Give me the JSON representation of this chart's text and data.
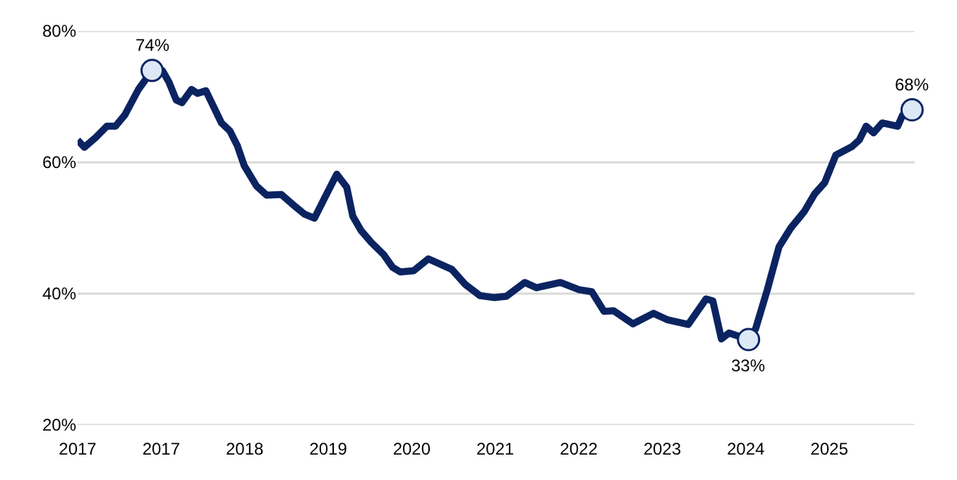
{
  "chart_data": {
    "type": "line",
    "x": [
      "2017-01-01",
      "2017-01-30",
      "2017-03-20",
      "2017-05-07",
      "2017-06-13",
      "2017-07-23",
      "2017-09-20",
      "2017-11-18",
      "2018-01-01",
      "2018-01-30",
      "2018-03-02",
      "2018-03-27",
      "2018-05-07",
      "2018-06-02",
      "2018-07-08",
      "2018-09-13",
      "2018-10-19",
      "2018-11-21",
      "2018-12-20",
      "2019-02-11",
      "2019-03-27",
      "2019-05-29",
      "2019-07-30",
      "2019-09-06",
      "2019-10-19",
      "2019-12-02",
      "2020-01-23",
      "2020-03-06",
      "2020-04-01",
      "2020-05-07",
      "2020-06-20",
      "2020-08-11",
      "2020-09-20",
      "2020-10-23",
      "2020-12-20",
      "2021-02-21",
      "2021-06-02",
      "2021-07-30",
      "2021-10-01",
      "2021-12-02",
      "2022-01-23",
      "2022-04-12",
      "2022-06-02",
      "2022-09-13",
      "2022-12-02",
      "2023-01-26",
      "2023-03-20",
      "2023-04-30",
      "2023-07-23",
      "2023-10-19",
      "2023-12-20",
      "2024-03-17",
      "2024-06-02",
      "2024-07-01",
      "2024-08-07",
      "2024-09-09",
      "2024-12-02",
      "2025-01-01",
      "2025-02-21",
      "2025-04-12",
      "2025-06-02",
      "2025-07-30",
      "2025-09-13",
      "2025-10-26",
      "2025-12-13",
      "2026-02-21",
      "2026-03-24",
      "2026-04-23",
      "2026-05-25",
      "2026-07-01",
      "2026-09-06",
      "2026-09-27",
      "2026-11-07"
    ],
    "series": [
      {
        "color": "#0b2461",
        "values": [
          63.4,
          62.3,
          63.8,
          65.5,
          65.5,
          67.2,
          71.1,
          74,
          74.0,
          72.2,
          69.5,
          69.1,
          71.1,
          70.5,
          70.9,
          66.0,
          64.8,
          62.5,
          59.5,
          56.4,
          55.0,
          55.1,
          53.2,
          52.1,
          51.5,
          54.6,
          58.2,
          56.2,
          51.8,
          49.6,
          47.8,
          46.0,
          44.0,
          43.3,
          43.5,
          45.3,
          43.7,
          41.4,
          39.7,
          39.4,
          39.6,
          41.7,
          40.9,
          41.7,
          40.6,
          40.3,
          37.3,
          37.4,
          35.4,
          37.0,
          36.0,
          35.3,
          39.2,
          38.9,
          33.1,
          34.0,
          33,
          34.6,
          40.6,
          47.1,
          50.0,
          52.5,
          55.2,
          56.9,
          61.1,
          62.4,
          63.4,
          65.5,
          64.5,
          66.0,
          65.5,
          67.2,
          68
        ]
      }
    ],
    "xlim": [
      "2017-01-01",
      "2026-11-18"
    ],
    "xticks": [
      {
        "value": "2017-01-01",
        "label": "2017"
      },
      {
        "value": "2017-12-27",
        "label": "2017"
      },
      {
        "value": "2018-12-22",
        "label": "2018"
      },
      {
        "value": "2019-12-17",
        "label": "2019"
      },
      {
        "value": "2020-12-11",
        "label": "2020"
      },
      {
        "value": "2021-12-06",
        "label": "2021"
      },
      {
        "value": "2022-12-01",
        "label": "2022"
      },
      {
        "value": "2023-11-26",
        "label": "2023"
      },
      {
        "value": "2024-11-20",
        "label": "2024"
      },
      {
        "value": "2025-11-15",
        "label": "2025"
      }
    ],
    "ylim": [
      20,
      80
    ],
    "yticks": [
      {
        "value": 20,
        "label": "20%"
      },
      {
        "value": 40,
        "label": "40%"
      },
      {
        "value": 60,
        "label": "60%"
      },
      {
        "value": 80,
        "label": "80%"
      }
    ],
    "grid": "y",
    "line_style": "solid",
    "annotations": [
      {
        "text": "74%",
        "x": "2017-11-18",
        "y": 74
      },
      {
        "text": "33%",
        "x": "2024-12-02",
        "y": 33
      },
      {
        "text": "68%",
        "x": "2026-11-07",
        "y": 68
      }
    ]
  }
}
